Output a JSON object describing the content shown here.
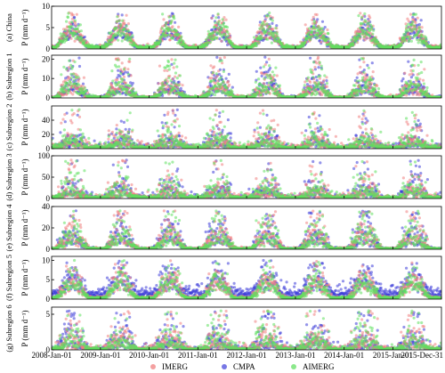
{
  "chart_data": {
    "type": "scatter",
    "x_axis": {
      "tick_labels": [
        "2008-Jan-01",
        "2009-Jan-01",
        "2010-Jan-01",
        "2011-Jan-01",
        "2012-Jan-01",
        "2013-Jan-01",
        "2014-Jan-01",
        "2015-Jan-01",
        "2015-Dec-31"
      ],
      "tick_dates": [
        "2008-01-01",
        "2009-01-01",
        "2010-01-01",
        "2011-01-01",
        "2012-01-01",
        "2013-01-01",
        "2014-01-01",
        "2015-01-01",
        "2015-12-31"
      ],
      "range": [
        "2008-01-01",
        "2015-12-31"
      ]
    },
    "legend": {
      "placement": "bottom-center",
      "entries": [
        {
          "name": "IMERG",
          "color": "#f08080"
        },
        {
          "name": "CMPA",
          "color": "#4b4bdc"
        },
        {
          "name": "AIMERG",
          "color": "#66e066"
        }
      ]
    },
    "series_colors": {
      "IMERG": "#f08080",
      "CMPA": "#3c3cd8",
      "AIMERG": "#5fe05f"
    },
    "panels": [
      {
        "label": "(a) China",
        "ylabel": "P (mm d⁻¹)",
        "ylim": [
          0,
          10
        ],
        "yticks": [
          0,
          5,
          10
        ],
        "wet_peak": 4.5,
        "dry_base": 0.4,
        "ymax_points": 8.5,
        "spread": 0.35
      },
      {
        "label": "(b) Subregion 1",
        "ylabel": "P (mm d⁻¹)",
        "ylim": [
          0,
          22
        ],
        "yticks": [
          0,
          10,
          20
        ],
        "wet_peak": 7,
        "dry_base": 0.3,
        "ymax_points": 21,
        "spread": 0.6
      },
      {
        "label": "(c) Subregion 2",
        "ylabel": "P (mm d⁻¹)",
        "ylim": [
          0,
          60
        ],
        "yticks": [
          0,
          20,
          40
        ],
        "wet_peak": 12,
        "dry_base": 1.5,
        "ymax_points": 55,
        "spread": 0.8
      },
      {
        "label": "(d) Subregion 3",
        "ylabel": "P (mm d⁻¹)",
        "ylim": [
          0,
          100
        ],
        "yticks": [
          0,
          50,
          100
        ],
        "wet_peak": 20,
        "dry_base": 2,
        "ymax_points": 90,
        "spread": 0.8
      },
      {
        "label": "(e) Subregion 4",
        "ylabel": "P (mm d⁻¹)",
        "ylim": [
          0,
          40
        ],
        "yticks": [
          0,
          20,
          40
        ],
        "wet_peak": 14,
        "dry_base": 0.5,
        "ymax_points": 36,
        "spread": 0.6
      },
      {
        "label": "(f) Subregion 5",
        "ylabel": "P (mm d⁻¹)",
        "ylim": [
          0,
          11
        ],
        "yticks": [
          0,
          5,
          10
        ],
        "wet_peak": 4.5,
        "dry_base": 0.3,
        "ymax_points": 10,
        "spread": 0.4,
        "cmpa_offset": 1.2
      },
      {
        "label": "(g) Subregion 6",
        "ylabel": "P (mm d⁻¹)",
        "ylim": [
          0,
          6
        ],
        "yticks": [
          0,
          5
        ],
        "wet_peak": 1.5,
        "dry_base": 0.1,
        "ymax_points": 5.5,
        "spread": 0.9
      }
    ]
  }
}
